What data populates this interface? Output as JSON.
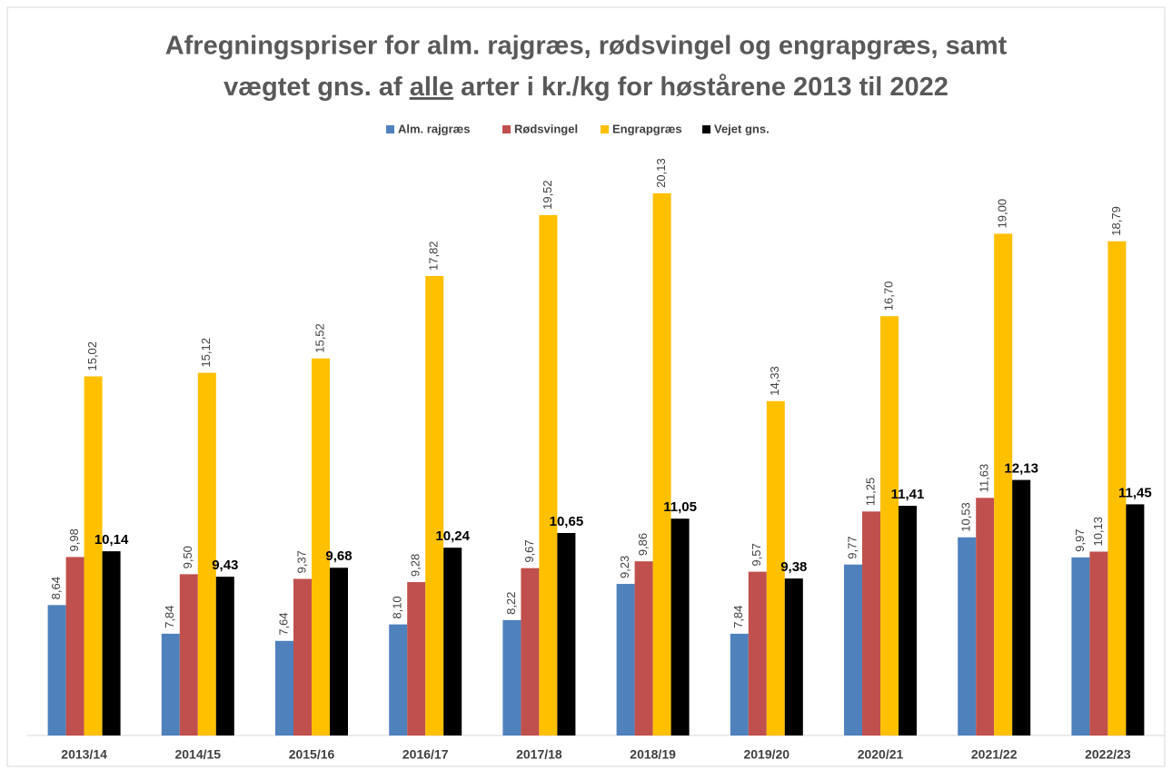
{
  "chart_data": {
    "type": "bar",
    "title": [
      "Afregningspriser for alm. rajgræs, rødsvingel og engrapgræs, samt",
      "vægtet gns. af",
      "alle",
      "arter i kr./kg for høstårene 2013 til 2022"
    ],
    "categories": [
      "2013/14",
      "2014/15",
      "2015/16",
      "2016/17",
      "2017/18",
      "2018/19",
      "2019/20",
      "2020/21",
      "2021/22",
      "2022/23"
    ],
    "series": [
      {
        "name": "Alm. rajgræs",
        "color": "#4f81bd",
        "values": [
          8.64,
          7.84,
          7.64,
          8.1,
          8.22,
          9.23,
          7.84,
          9.77,
          10.53,
          9.97
        ],
        "value_labels": [
          "8,64",
          "7,84",
          "7,64",
          "8,10",
          "8,22",
          "9,23",
          "7,84",
          "9,77",
          "10,53",
          "9,97"
        ]
      },
      {
        "name": "Rødsvingel",
        "color": "#c0504d",
        "values": [
          9.98,
          9.5,
          9.37,
          9.28,
          9.67,
          9.86,
          9.57,
          11.25,
          11.63,
          10.13
        ],
        "value_labels": [
          "9,98",
          "9,50",
          "9,37",
          "9,28",
          "9,67",
          "9,86",
          "9,57",
          "11,25",
          "11,63",
          "10,13"
        ]
      },
      {
        "name": "Engrapgræs",
        "color": "#ffc000",
        "values": [
          15.02,
          15.12,
          15.52,
          17.82,
          19.52,
          20.13,
          14.33,
          16.7,
          19.0,
          18.79
        ],
        "value_labels": [
          "15,02",
          "15,12",
          "15,52",
          "17,82",
          "19,52",
          "20,13",
          "14,33",
          "16,70",
          "19,00",
          "18,79"
        ]
      },
      {
        "name": "Vejet gns.",
        "color": "#000000",
        "values": [
          10.14,
          9.43,
          9.68,
          10.24,
          10.65,
          11.05,
          9.38,
          11.41,
          12.13,
          11.45
        ],
        "value_labels": [
          "10,14",
          "9,43",
          "9,68",
          "10,24",
          "10,65",
          "11,05",
          "9,38",
          "11,41",
          "12,13",
          "11,45"
        ]
      }
    ],
    "ylim": [
      5,
      22
    ]
  }
}
